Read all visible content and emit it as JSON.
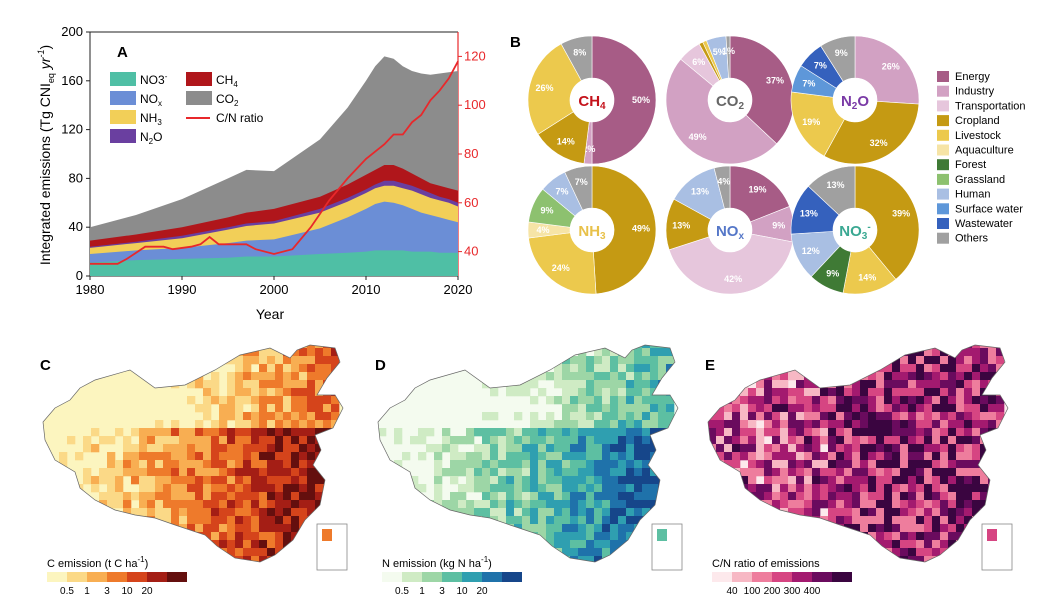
{
  "panels": {
    "a": "A",
    "b": "B",
    "c": "C",
    "d": "D",
    "e": "E"
  },
  "chart_data": [
    {
      "type": "area",
      "id": "A",
      "xlabel": "Year",
      "ylabel": "Integrated emissions (Tg CNI",
      "ylabel_sub": "eq",
      "ylabel_tail": " yr",
      "ylabel_sup": "-1",
      "ylabel_close": ")",
      "xlim": [
        1980,
        2020
      ],
      "ylim": [
        0,
        200
      ],
      "y2lim": [
        30,
        130
      ],
      "x_ticks": [
        "1980",
        "1990",
        "2000",
        "2010",
        "2020"
      ],
      "y_ticks": [
        "0",
        "40",
        "80",
        "120",
        "160",
        "200"
      ],
      "y2_ticks": [
        "40",
        "60",
        "80",
        "100",
        "120"
      ],
      "x": [
        1980,
        1985,
        1990,
        1995,
        1997,
        2000,
        2005,
        2008,
        2010,
        2011,
        2012,
        2013,
        2014,
        2015,
        2016,
        2017,
        2018,
        2019,
        2020
      ],
      "series": [
        {
          "name": "NO3-",
          "color": "#4fbfa5",
          "cumulative": [
            11,
            13,
            14,
            15,
            16,
            16,
            18,
            19,
            20,
            21,
            21,
            21,
            21,
            20,
            20,
            20,
            19,
            19,
            19
          ]
        },
        {
          "name": "NOx",
          "color": "#6b8ed6",
          "cumulative": [
            18,
            21,
            23,
            27,
            29,
            30,
            39,
            48,
            55,
            59,
            61,
            60,
            58,
            55,
            52,
            50,
            48,
            46,
            44
          ]
        },
        {
          "name": "NH3",
          "color": "#f2cf58",
          "cumulative": [
            23,
            27,
            31,
            38,
            41,
            43,
            52,
            61,
            68,
            72,
            74,
            74,
            72,
            70,
            67,
            64,
            62,
            60,
            57
          ]
        },
        {
          "name": "N2O",
          "color": "#6a3fa0",
          "cumulative": [
            24,
            28,
            33,
            40,
            43,
            45,
            55,
            64,
            71,
            75,
            78,
            78,
            76,
            74,
            71,
            68,
            65,
            63,
            60
          ]
        },
        {
          "name": "CH4",
          "color": "#b0161b",
          "cumulative": [
            29,
            34,
            40,
            48,
            52,
            55,
            65,
            75,
            83,
            87,
            91,
            91,
            88,
            84,
            80,
            76,
            74,
            72,
            70
          ]
        },
        {
          "name": "CO2",
          "color": "#8c8c8c",
          "cumulative": [
            40,
            50,
            63,
            80,
            87,
            86,
            112,
            138,
            160,
            172,
            180,
            178,
            172,
            168,
            166,
            165,
            166,
            167,
            168
          ]
        }
      ],
      "ratio_series": {
        "name": "C/N ratio",
        "color": "#e8282b",
        "x": [
          1980,
          1983,
          1984,
          1986,
          1988,
          1989,
          1991,
          1992,
          1993,
          1994,
          1997,
          1998,
          2000,
          2002,
          2004,
          2006,
          2008,
          2010,
          2012,
          2013,
          2014,
          2015,
          2016,
          2017,
          2018,
          2019,
          2020
        ],
        "values": [
          35,
          35,
          37,
          42,
          42,
          41,
          42,
          43,
          46,
          43,
          43,
          41,
          39,
          41,
          50,
          61,
          70,
          78,
          84,
          88,
          88,
          93,
          96,
          102,
          106,
          111,
          118
        ]
      },
      "legend": [
        {
          "name": "NO3",
          "sup": "-",
          "sub": ""
        },
        {
          "name": "NO",
          "sup": "",
          "sub": "x"
        },
        {
          "name": "NH",
          "sup": "",
          "sub": "3"
        },
        {
          "name": "N",
          "sup": "",
          "sub": "2",
          "tail": "O"
        },
        {
          "name": "CH",
          "sup": "",
          "sub": "4"
        },
        {
          "name": "CO",
          "sup": "",
          "sub": "2"
        },
        {
          "name": "C/N ratio",
          "sup": "",
          "sub": ""
        }
      ]
    },
    {
      "type": "pie",
      "id": "B",
      "legend_placement": "right",
      "categories": [
        "Energy",
        "Industry",
        "Transportation",
        "Cropland",
        "Livestock",
        "Aquaculture",
        "Forest",
        "Grassland",
        "Human",
        "Surface water",
        "Wastewater",
        "Others"
      ],
      "colors": [
        "#a75c86",
        "#d2a1c3",
        "#e6c6dc",
        "#c59a13",
        "#ecc94d",
        "#f6e4a6",
        "#3f7a35",
        "#8dc16f",
        "#a9bfe3",
        "#5e97d9",
        "#3561bd",
        "#a0a0a0"
      ],
      "donuts": [
        {
          "label": "CH",
          "label_sub": "4",
          "label_sup": "",
          "label_color": "#c4121b",
          "slices": [
            {
              "cat": "Energy",
              "value": 50,
              "label": "50%"
            },
            {
              "cat": "Industry",
              "value": 2,
              "label": "2%"
            },
            {
              "cat": "Cropland",
              "value": 14,
              "label": "14%"
            },
            {
              "cat": "Livestock",
              "value": 26,
              "label": "26%"
            },
            {
              "cat": "Others",
              "value": 8,
              "label": "8%"
            }
          ]
        },
        {
          "label": "CO",
          "label_sub": "2",
          "label_sup": "",
          "label_color": "#666666",
          "slices": [
            {
              "cat": "Energy",
              "value": 37,
              "label": "37%"
            },
            {
              "cat": "Industry",
              "value": 49,
              "label": "49%"
            },
            {
              "cat": "Transportation",
              "value": 6,
              "label": "6%"
            },
            {
              "cat": "Cropland",
              "value": 1,
              "label": ""
            },
            {
              "cat": "Livestock",
              "value": 1,
              "label": ""
            },
            {
              "cat": "Human",
              "value": 5,
              "label": "5%"
            },
            {
              "cat": "Others",
              "value": 1,
              "label": "1%"
            }
          ]
        },
        {
          "label": "N",
          "label_sub": "2",
          "label_tail": "O",
          "label_sup": "",
          "label_color": "#7a3aa6",
          "slices": [
            {
              "cat": "Industry",
              "value": 26,
              "label": "26%"
            },
            {
              "cat": "Cropland",
              "value": 32,
              "label": "32%"
            },
            {
              "cat": "Livestock",
              "value": 19,
              "label": "19%"
            },
            {
              "cat": "Surface water",
              "value": 7,
              "label": "7%"
            },
            {
              "cat": "Wastewater",
              "value": 7,
              "label": "7%"
            },
            {
              "cat": "Others",
              "value": 9,
              "label": "9%"
            }
          ]
        },
        {
          "label": "NH",
          "label_sub": "3",
          "label_sup": "",
          "label_color": "#e8c14a",
          "slices": [
            {
              "cat": "Cropland",
              "value": 49,
              "label": "49%"
            },
            {
              "cat": "Livestock",
              "value": 24,
              "label": "24%"
            },
            {
              "cat": "Aquaculture",
              "value": 4,
              "label": "4%"
            },
            {
              "cat": "Grassland",
              "value": 9,
              "label": "9%"
            },
            {
              "cat": "Human",
              "value": 7,
              "label": "7%"
            },
            {
              "cat": "Others",
              "value": 7,
              "label": "7%"
            }
          ]
        },
        {
          "label": "NO",
          "label_sub": "x",
          "label_sup": "",
          "label_color": "#5577c8",
          "slices": [
            {
              "cat": "Energy",
              "value": 19,
              "label": "19%"
            },
            {
              "cat": "Industry",
              "value": 9,
              "label": "9%"
            },
            {
              "cat": "Transportation",
              "value": 42,
              "label": "42%"
            },
            {
              "cat": "Cropland",
              "value": 13,
              "label": "13%"
            },
            {
              "cat": "Human",
              "value": 13,
              "label": "13%"
            },
            {
              "cat": "Others",
              "value": 4,
              "label": "4%"
            }
          ]
        },
        {
          "label": "NO",
          "label_sub": "3",
          "label_sup": "-",
          "label_color": "#3aa892",
          "slices": [
            {
              "cat": "Cropland",
              "value": 39,
              "label": "39%"
            },
            {
              "cat": "Livestock",
              "value": 14,
              "label": "14%"
            },
            {
              "cat": "Forest",
              "value": 9,
              "label": "9%"
            },
            {
              "cat": "Human",
              "value": 12,
              "label": "12%"
            },
            {
              "cat": "Wastewater",
              "value": 13,
              "label": "13%"
            },
            {
              "cat": "Others",
              "value": 13,
              "label": "13%"
            }
          ]
        }
      ]
    },
    {
      "type": "heatmap",
      "id": "C",
      "colorbar_title": "C emission (t C ha",
      "colorbar_sup": "-1",
      "colorbar_close": ")",
      "colorbar_ticks": [
        "0.5",
        "1",
        "3",
        "10",
        "20"
      ],
      "colors": [
        "#fcf5bf",
        "#fbd987",
        "#f8ae52",
        "#ee7a2b",
        "#d5441b",
        "#a41e15",
        "#640f0e"
      ]
    },
    {
      "type": "heatmap",
      "id": "D",
      "colorbar_title": "N emission (kg N ha",
      "colorbar_sup": "-1",
      "colorbar_close": ")",
      "colorbar_ticks": [
        "0.5",
        "1",
        "3",
        "10",
        "20"
      ],
      "colors": [
        "#f4fbef",
        "#cfebc4",
        "#9dd6a6",
        "#5dbfa2",
        "#2f9fb0",
        "#1f72aa",
        "#16468a"
      ]
    },
    {
      "type": "heatmap",
      "id": "E",
      "colorbar_title": "C/N ratio of emissions",
      "colorbar_sup": "",
      "colorbar_close": "",
      "colorbar_ticks": [
        "40",
        "100",
        "200",
        "300",
        "400"
      ],
      "colors": [
        "#fde9ec",
        "#f7b8c4",
        "#ee7d9d",
        "#d64582",
        "#a31a6f",
        "#6a0b5e",
        "#3a0540"
      ]
    }
  ]
}
